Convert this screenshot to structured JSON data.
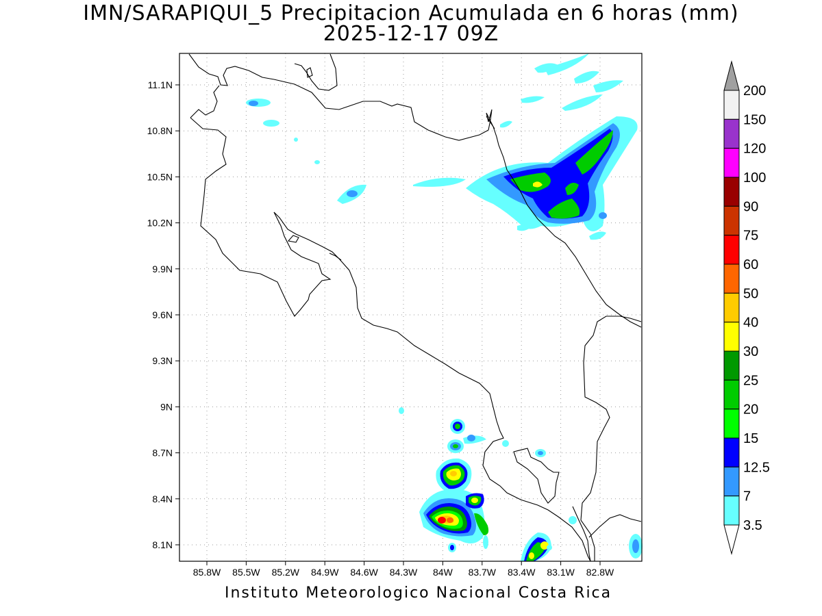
{
  "title": {
    "line1": "IMN/SARAPIQUI_5 Precipitacion Acumulada en 6 horas (mm)",
    "line2": "2025-12-17 09Z"
  },
  "footer": "Instituto Meteorologico Nacional Costa Rica",
  "map": {
    "lat_ticks": [
      "11.1N",
      "10.8N",
      "10.5N",
      "10.2N",
      "9.9N",
      "9.6N",
      "9.3N",
      "9N",
      "8.7N",
      "8.4N",
      "8.1N"
    ],
    "lon_ticks": [
      "85.8W",
      "85.5W",
      "85.2W",
      "84.9W",
      "84.6W",
      "84.3W",
      "84W",
      "83.7W",
      "83.4W",
      "83.1W",
      "82.8W"
    ],
    "gridlines": true
  },
  "colorbar": {
    "labels": [
      "200",
      "150",
      "120",
      "100",
      "90",
      "75",
      "60",
      "50",
      "40",
      "30",
      "25",
      "20",
      "15",
      "12.5",
      "7",
      "3.5"
    ],
    "colors": [
      "#a0a0a0",
      "#f2f2f2",
      "#9933cc",
      "#ff00ff",
      "#990000",
      "#cc3300",
      "#ff0000",
      "#ff6600",
      "#ffcc00",
      "#ffff00",
      "#009900",
      "#00cc00",
      "#00ff00",
      "#0000ff",
      "#3399ff",
      "#66ffff",
      "#ffffff"
    ]
  }
}
